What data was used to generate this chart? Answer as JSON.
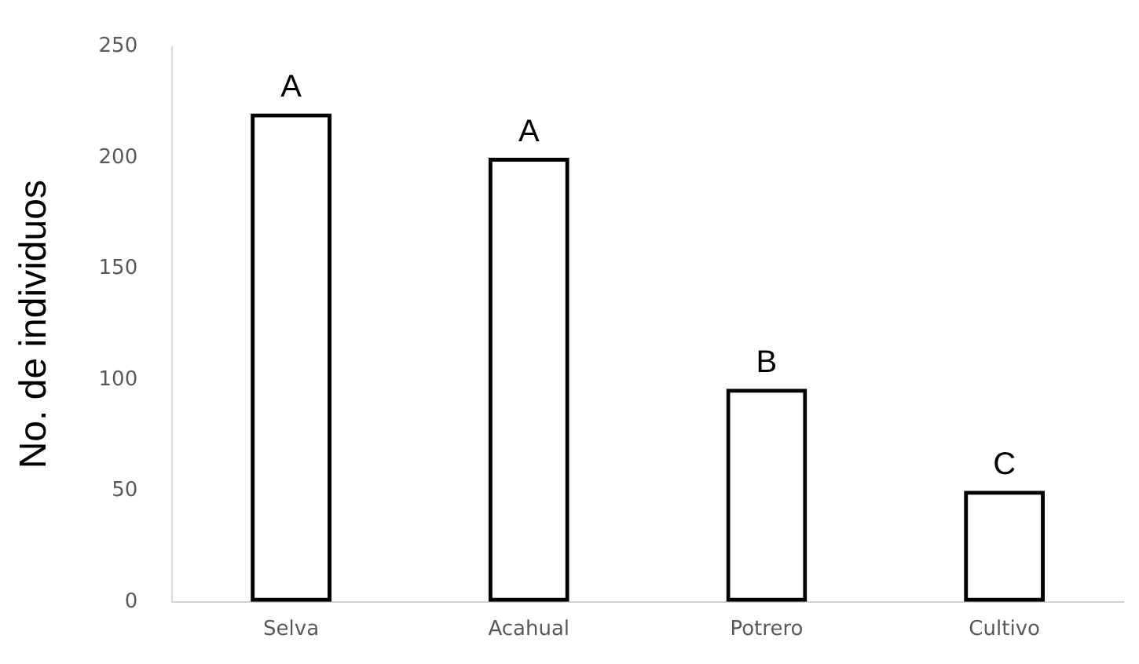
{
  "chart_data": {
    "type": "bar",
    "ylabel": "No. de individuos",
    "categories": [
      "Selva",
      "Acahual",
      "Potrero",
      "Cultivo"
    ],
    "values": [
      220,
      200,
      96,
      50
    ],
    "color": "#000000",
    "ylim": [
      0,
      250
    ],
    "yticks": [
      0,
      50,
      100,
      150,
      200,
      250
    ],
    "grid": false,
    "legend": false,
    "annotations": [
      {
        "text": "A",
        "x": "Selva",
        "y": 220
      },
      {
        "text": "A",
        "x": "Acahual",
        "y": 200
      },
      {
        "text": "B",
        "x": "Potrero",
        "y": 96
      },
      {
        "text": "C",
        "x": "Cultivo",
        "y": 50
      }
    ]
  }
}
